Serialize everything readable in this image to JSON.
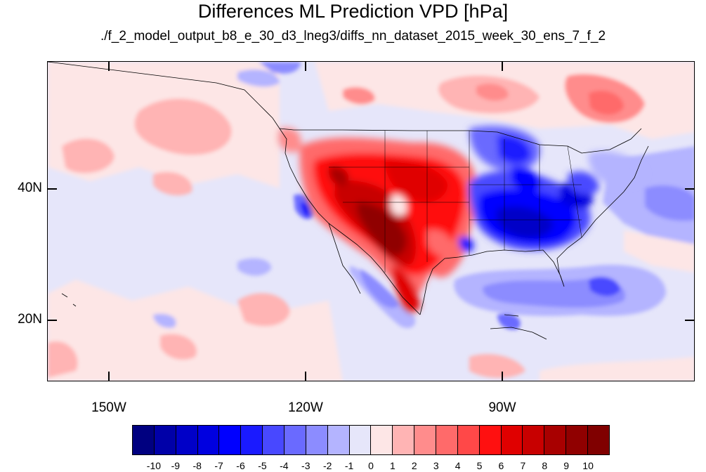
{
  "title": "Differences ML Prediction VPD [hPa]",
  "subtitle": "./f_2_model_output_b8_e_30_d3_lneg3/diffs_nn_dataset_2015_week_30_ens_7_f_2",
  "map": {
    "lat_labels": [
      "40N",
      "20N"
    ],
    "lon_labels": [
      "150W",
      "120W",
      "90W"
    ]
  },
  "colorbar": {
    "levels": [
      "-10",
      "-9",
      "-8",
      "-7",
      "-6",
      "-5",
      "-4",
      "-3",
      "-2",
      "-1",
      "0",
      "1",
      "2",
      "3",
      "4",
      "5",
      "6",
      "7",
      "8",
      "9",
      "10"
    ],
    "colors": [
      "#000080",
      "#0000a8",
      "#0000c8",
      "#0000e0",
      "#0000ff",
      "#1a1aff",
      "#4848ff",
      "#6a6aff",
      "#8c8cff",
      "#b4b4ff",
      "#e6e6fa",
      "#fde6e6",
      "#ffb4b4",
      "#ff8c8c",
      "#ff6a6a",
      "#ff4848",
      "#ff1010",
      "#e00000",
      "#c80000",
      "#a80000",
      "#900000",
      "#800000"
    ]
  }
}
